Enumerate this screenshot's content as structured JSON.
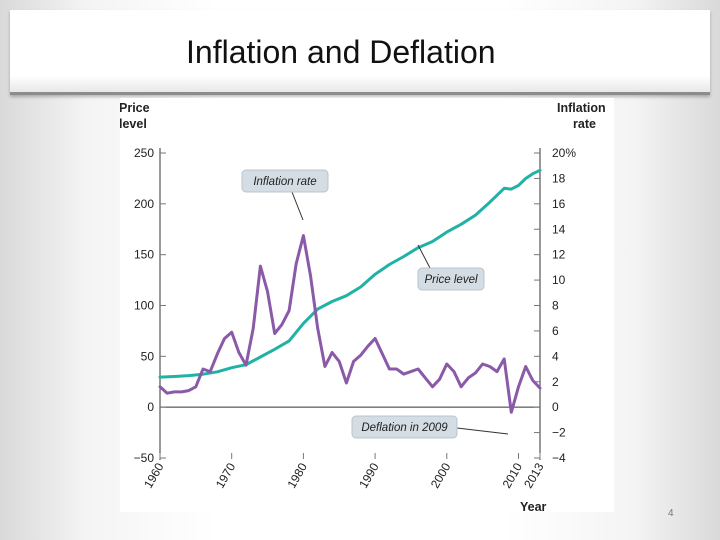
{
  "slide": {
    "title": "Inflation and Deflation",
    "page_number": "4"
  },
  "colors": {
    "price_level": "#20b2a5",
    "inflation_rate": "#8a5aa8",
    "callout_fill": "#d4dde3",
    "axis": "#333333"
  },
  "chart_data": {
    "type": "line",
    "title": "",
    "xlabel": "Year",
    "ylabel_left": [
      "Price",
      "level"
    ],
    "ylabel_right": [
      "Inflation",
      "rate"
    ],
    "xlim": [
      1960,
      2013
    ],
    "ylim_left": [
      -50,
      250
    ],
    "ylim_right": [
      -4,
      20
    ],
    "left_ticks": [
      {
        "value": 250,
        "label": "250"
      },
      {
        "value": 200,
        "label": "200"
      },
      {
        "value": 150,
        "label": "150"
      },
      {
        "value": 100,
        "label": "100"
      },
      {
        "value": 50,
        "label": "50"
      },
      {
        "value": 0,
        "label": "0"
      },
      {
        "value": -50,
        "label": "−50"
      }
    ],
    "right_ticks": [
      {
        "value": 20,
        "label": "20%"
      },
      {
        "value": 18,
        "label": "18"
      },
      {
        "value": 16,
        "label": "16"
      },
      {
        "value": 14,
        "label": "14"
      },
      {
        "value": 12,
        "label": "12"
      },
      {
        "value": 10,
        "label": "10"
      },
      {
        "value": 8,
        "label": "8"
      },
      {
        "value": 6,
        "label": "6"
      },
      {
        "value": 4,
        "label": "4"
      },
      {
        "value": 2,
        "label": "2"
      },
      {
        "value": 0,
        "label": "0"
      },
      {
        "value": -2,
        "label": "−2"
      },
      {
        "value": -4,
        "label": "−4"
      }
    ],
    "x_ticks": [
      {
        "value": 1960,
        "label": "1960"
      },
      {
        "value": 1970,
        "label": "1970"
      },
      {
        "value": 1980,
        "label": "1980"
      },
      {
        "value": 1990,
        "label": "1990"
      },
      {
        "value": 2000,
        "label": "2000"
      },
      {
        "value": 2010,
        "label": "2010"
      },
      {
        "value": 2013,
        "label": "2013"
      }
    ],
    "series": [
      {
        "name": "Price level",
        "axis": "left",
        "x": [
          1960,
          1962,
          1964,
          1966,
          1968,
          1970,
          1972,
          1974,
          1976,
          1978,
          1980,
          1982,
          1984,
          1986,
          1988,
          1990,
          1992,
          1994,
          1996,
          1998,
          2000,
          2002,
          2004,
          2006,
          2008,
          2009,
          2010,
          2011,
          2012,
          2013
        ],
        "values": [
          29.6,
          30.2,
          31.0,
          32.4,
          34.8,
          38.8,
          41.8,
          49.3,
          56.9,
          65.2,
          82.4,
          96.5,
          103.9,
          109.6,
          118.3,
          130.7,
          140.3,
          148.2,
          156.9,
          163.0,
          172.2,
          179.9,
          188.9,
          201.6,
          215.3,
          214.5,
          218.1,
          224.9,
          229.6,
          233.0
        ]
      },
      {
        "name": "Inflation rate",
        "axis": "right",
        "x": [
          1960,
          1961,
          1962,
          1963,
          1964,
          1965,
          1966,
          1967,
          1968,
          1969,
          1970,
          1971,
          1972,
          1973,
          1974,
          1975,
          1976,
          1977,
          1978,
          1979,
          1980,
          1981,
          1982,
          1983,
          1984,
          1985,
          1986,
          1987,
          1988,
          1989,
          1990,
          1991,
          1992,
          1993,
          1994,
          1995,
          1996,
          1997,
          1998,
          1999,
          2000,
          2001,
          2002,
          2003,
          2004,
          2005,
          2006,
          2007,
          2008,
          2009,
          2010,
          2011,
          2012,
          2013
        ],
        "values": [
          1.6,
          1.1,
          1.2,
          1.2,
          1.3,
          1.6,
          3.0,
          2.8,
          4.2,
          5.4,
          5.9,
          4.3,
          3.3,
          6.2,
          11.1,
          9.1,
          5.8,
          6.5,
          7.6,
          11.3,
          13.5,
          10.3,
          6.2,
          3.2,
          4.3,
          3.6,
          1.9,
          3.6,
          4.1,
          4.8,
          5.4,
          4.2,
          3.0,
          3.0,
          2.6,
          2.8,
          3.0,
          2.3,
          1.6,
          2.2,
          3.4,
          2.8,
          1.6,
          2.3,
          2.7,
          3.4,
          3.2,
          2.8,
          3.8,
          -0.4,
          1.6,
          3.2,
          2.1,
          1.5
        ]
      }
    ],
    "annotations": {
      "inflation_rate": "Inflation rate",
      "price_level": "Price level",
      "deflation_2009": "Deflation in 2009"
    }
  }
}
